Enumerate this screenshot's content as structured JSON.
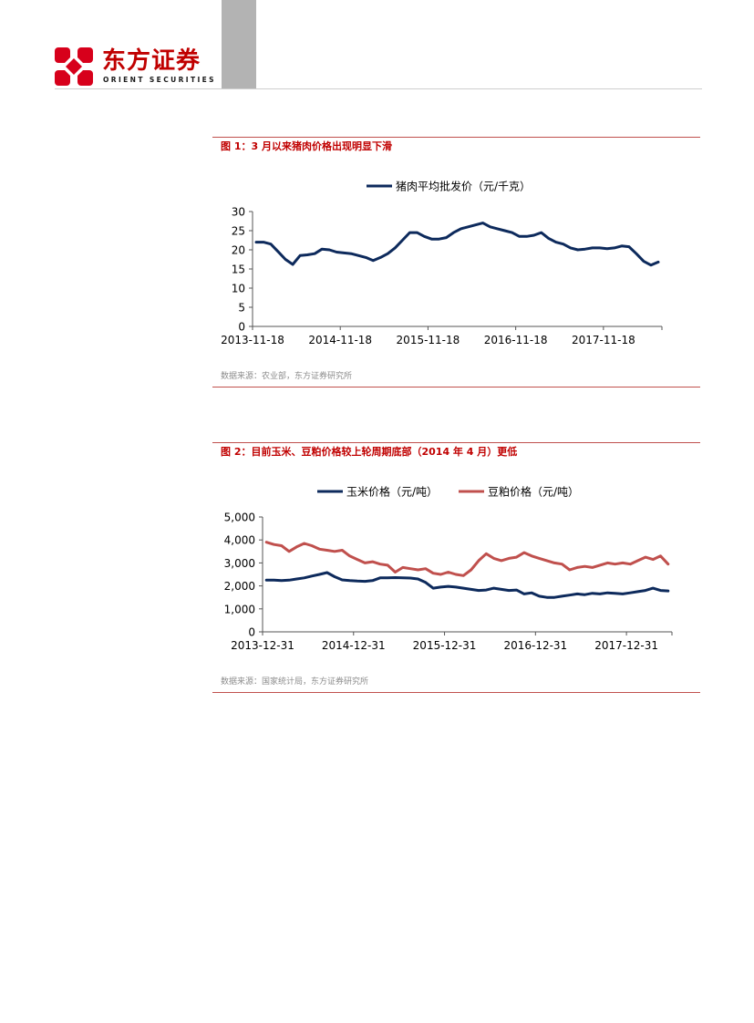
{
  "header": {
    "logo_cn": "东方证券",
    "logo_en": "ORIENT SECURITIES",
    "brand_color": "#c00000"
  },
  "fig1": {
    "title": "图 1：3 月以来猪肉价格出现明显下滑",
    "source": "数据来源：农业部，东方证券研究所"
  },
  "fig2": {
    "title": "图 2：目前玉米、豆粕价格较上轮周期底部（2014 年 4 月）更低",
    "source": "数据来源：国家统计局，东方证券研究所"
  },
  "chart_data": [
    {
      "type": "line",
      "legend_position": "top-center",
      "grid": false,
      "ylim": [
        0,
        30
      ],
      "yticks": [
        "0",
        "5",
        "10",
        "15",
        "20",
        "25",
        "30"
      ],
      "xticks": [
        "2013-11-18",
        "2014-11-18",
        "2015-11-18",
        "2016-11-18",
        "2017-11-18"
      ],
      "x": [
        "2013-11",
        "2013-12",
        "2014-01",
        "2014-02",
        "2014-03",
        "2014-04",
        "2014-05",
        "2014-06",
        "2014-07",
        "2014-08",
        "2014-09",
        "2014-10",
        "2014-11",
        "2014-12",
        "2015-01",
        "2015-02",
        "2015-03",
        "2015-04",
        "2015-05",
        "2015-06",
        "2015-07",
        "2015-08",
        "2015-09",
        "2015-10",
        "2015-11",
        "2015-12",
        "2016-01",
        "2016-02",
        "2016-03",
        "2016-04",
        "2016-05",
        "2016-06",
        "2016-07",
        "2016-08",
        "2016-09",
        "2016-10",
        "2016-11",
        "2016-12",
        "2017-01",
        "2017-02",
        "2017-03",
        "2017-04",
        "2017-05",
        "2017-06",
        "2017-07",
        "2017-08",
        "2017-09",
        "2017-10",
        "2017-11",
        "2017-12",
        "2018-01",
        "2018-02",
        "2018-03",
        "2018-04",
        "2018-05",
        "2018-06"
      ],
      "series": [
        {
          "name": "猪肉平均批发价（元/千克）",
          "color": "#0d2a5c",
          "values": [
            22.0,
            22.0,
            21.5,
            19.5,
            17.5,
            16.2,
            18.5,
            18.7,
            19.0,
            20.2,
            20.0,
            19.4,
            19.2,
            19.0,
            18.5,
            18.0,
            17.2,
            18.0,
            19.0,
            20.5,
            22.5,
            24.5,
            24.5,
            23.5,
            22.8,
            22.8,
            23.2,
            24.5,
            25.5,
            26.0,
            26.5,
            27.0,
            26.0,
            25.5,
            25.0,
            24.5,
            23.5,
            23.5,
            23.8,
            24.5,
            23.0,
            22.0,
            21.5,
            20.5,
            20.0,
            20.2,
            20.5,
            20.5,
            20.3,
            20.5,
            21.0,
            20.8,
            19.0,
            17.0,
            16.0,
            16.8
          ]
        }
      ]
    },
    {
      "type": "line",
      "legend_position": "top-center",
      "grid": false,
      "ylim": [
        0,
        5000
      ],
      "yticks": [
        "0",
        "1,000",
        "2,000",
        "3,000",
        "4,000",
        "5,000"
      ],
      "xticks": [
        "2013-12-31",
        "2014-12-31",
        "2015-12-31",
        "2016-12-31",
        "2017-12-31"
      ],
      "x": [
        "2013-12",
        "2014-01",
        "2014-02",
        "2014-03",
        "2014-04",
        "2014-05",
        "2014-06",
        "2014-07",
        "2014-08",
        "2014-09",
        "2014-10",
        "2014-11",
        "2014-12",
        "2015-01",
        "2015-02",
        "2015-03",
        "2015-04",
        "2015-05",
        "2015-06",
        "2015-07",
        "2015-08",
        "2015-09",
        "2015-10",
        "2015-11",
        "2015-12",
        "2016-01",
        "2016-02",
        "2016-03",
        "2016-04",
        "2016-05",
        "2016-06",
        "2016-07",
        "2016-08",
        "2016-09",
        "2016-10",
        "2016-11",
        "2016-12",
        "2017-01",
        "2017-02",
        "2017-03",
        "2017-04",
        "2017-05",
        "2017-06",
        "2017-07",
        "2017-08",
        "2017-09",
        "2017-10",
        "2017-11",
        "2017-12",
        "2018-01",
        "2018-02",
        "2018-03",
        "2018-04",
        "2018-05"
      ],
      "series": [
        {
          "name": "玉米价格（元/吨）",
          "color": "#0d2a5c",
          "values": [
            2250,
            2250,
            2230,
            2250,
            2300,
            2350,
            2430,
            2500,
            2580,
            2400,
            2260,
            2230,
            2210,
            2200,
            2230,
            2350,
            2350,
            2360,
            2350,
            2340,
            2300,
            2150,
            1900,
            1950,
            1980,
            1950,
            1900,
            1850,
            1800,
            1820,
            1900,
            1850,
            1800,
            1820,
            1650,
            1700,
            1550,
            1500,
            1500,
            1550,
            1600,
            1650,
            1620,
            1680,
            1650,
            1700,
            1680,
            1650,
            1700,
            1750,
            1800,
            1900,
            1800,
            1780
          ]
        },
        {
          "name": "豆粕价格（元/吨）",
          "color": "#c0504d",
          "values": [
            3900,
            3800,
            3750,
            3500,
            3700,
            3850,
            3750,
            3600,
            3550,
            3500,
            3550,
            3300,
            3150,
            3000,
            3050,
            2950,
            2900,
            2600,
            2800,
            2750,
            2700,
            2750,
            2550,
            2500,
            2600,
            2500,
            2450,
            2700,
            3100,
            3400,
            3200,
            3100,
            3200,
            3250,
            3450,
            3300,
            3200,
            3100,
            3000,
            2950,
            2700,
            2800,
            2850,
            2800,
            2900,
            3000,
            2950,
            3000,
            2950,
            3100,
            3250,
            3150,
            3300,
            2950
          ]
        }
      ]
    }
  ]
}
